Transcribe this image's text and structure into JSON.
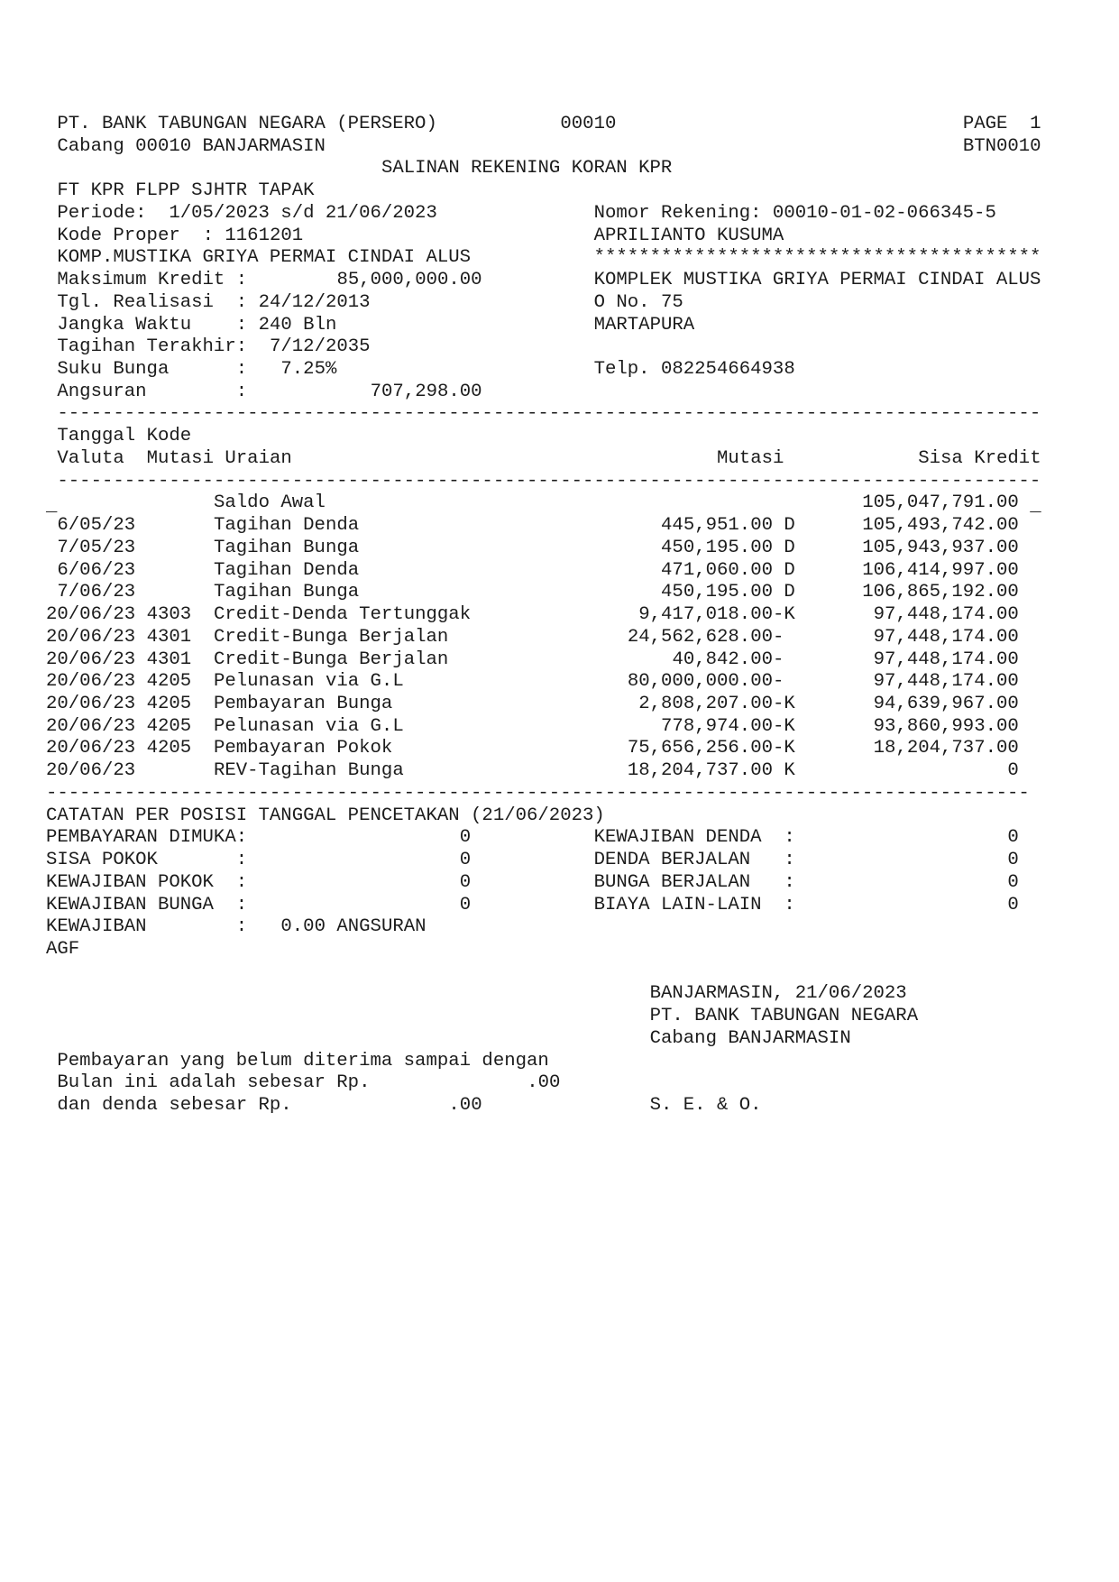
{
  "header": {
    "bank_name": "PT. BANK TABUNGAN NEGARA (PERSERO)",
    "branch_code": "00010",
    "page": "PAGE  1",
    "branch": "Cabang 00010 BANJARMASIN",
    "report_id": "BTN0010",
    "title": "SALINAN REKENING KORAN KPR",
    "product": "FT KPR FLPP SJHTR TAPAK"
  },
  "loan": {
    "periode": "Periode:  1/05/2023 s/d 21/06/2023",
    "kode_proper_label": "Kode Proper",
    "kode_proper": "1161201",
    "project": "KOMP.MUSTIKA GRIYA PERMAI CINDAI ALUS",
    "maks_kredit_label": "Maksimum Kredit",
    "maks_kredit": "85,000,000.00",
    "tgl_realisasi_label": "Tgl. Realisasi",
    "tgl_realisasi": "24/12/2013",
    "jangka_label": "Jangka Waktu",
    "jangka": "240 Bln",
    "tagihan_terakhir_label": "Tagihan Terakhir",
    "tagihan_terakhir": "7/12/2035",
    "suku_bunga_label": "Suku Bunga",
    "suku_bunga": "7.25%",
    "angsuran_label": "Angsuran",
    "angsuran": "707,298.00",
    "colon": ":"
  },
  "customer": {
    "nomor_rekening": "Nomor Rekening: 00010-01-02-066345-5",
    "name": "APRILIANTO KUSUMA",
    "stars": "****************************************",
    "address1": "KOMPLEK MUSTIKA GRIYA PERMAI CINDAI ALUS",
    "address2": "O No. 75",
    "city": "MARTAPURA",
    "phone": "Telp. 082254664938"
  },
  "separators": {
    "wide": "----------------------------------------------------------------------------------------",
    "bottom": "----------------------------------------------------------------------------------------",
    "cursor": "_"
  },
  "table": {
    "headers": {
      "tanggal": "Tanggal",
      "kode": "Kode",
      "valuta": "Valuta",
      "mutasi_kode": "Mutasi",
      "uraian": "Uraian",
      "mutasi": "Mutasi",
      "sisa_kredit": "Sisa Kredit"
    },
    "opening": {
      "uraian": "Saldo Awal",
      "sisa": "105,047,791.00"
    },
    "rows": [
      {
        "tanggal": " 6/05/23",
        "kode": "",
        "uraian": "Tagihan Denda",
        "mutasi": "445,951.00",
        "flag": " D",
        "sisa": "105,493,742.00"
      },
      {
        "tanggal": " 7/05/23",
        "kode": "",
        "uraian": "Tagihan Bunga",
        "mutasi": "450,195.00",
        "flag": " D",
        "sisa": "105,943,937.00"
      },
      {
        "tanggal": " 6/06/23",
        "kode": "",
        "uraian": "Tagihan Denda",
        "mutasi": "471,060.00",
        "flag": " D",
        "sisa": "106,414,997.00"
      },
      {
        "tanggal": " 7/06/23",
        "kode": "",
        "uraian": "Tagihan Bunga",
        "mutasi": "450,195.00",
        "flag": " D",
        "sisa": "106,865,192.00"
      },
      {
        "tanggal": "20/06/23",
        "kode": "4303",
        "uraian": "Credit-Denda Tertunggak",
        "mutasi": "9,417,018.00",
        "flag": "-K",
        "sisa": "97,448,174.00"
      },
      {
        "tanggal": "20/06/23",
        "kode": "4301",
        "uraian": "Credit-Bunga Berjalan",
        "mutasi": "24,562,628.00",
        "flag": "-",
        "sisa": "97,448,174.00"
      },
      {
        "tanggal": "20/06/23",
        "kode": "4301",
        "uraian": "Credit-Bunga Berjalan",
        "mutasi": "40,842.00",
        "flag": "-",
        "sisa": "97,448,174.00"
      },
      {
        "tanggal": "20/06/23",
        "kode": "4205",
        "uraian": "Pelunasan via G.L",
        "mutasi": "80,000,000.00",
        "flag": "-",
        "sisa": "97,448,174.00"
      },
      {
        "tanggal": "20/06/23",
        "kode": "4205",
        "uraian": "Pembayaran Bunga",
        "mutasi": "2,808,207.00",
        "flag": "-K",
        "sisa": "94,639,967.00"
      },
      {
        "tanggal": "20/06/23",
        "kode": "4205",
        "uraian": "Pelunasan via G.L",
        "mutasi": "778,974.00",
        "flag": "-K",
        "sisa": "93,860,993.00"
      },
      {
        "tanggal": "20/06/23",
        "kode": "4205",
        "uraian": "Pembayaran Pokok",
        "mutasi": "75,656,256.00",
        "flag": "-K",
        "sisa": "18,204,737.00"
      },
      {
        "tanggal": "20/06/23",
        "kode": "",
        "uraian": "REV-Tagihan Bunga",
        "mutasi": "18,204,737.00",
        "flag": " K",
        "sisa": "0"
      }
    ]
  },
  "notes": {
    "title": "CATATAN PER POSISI TANGGAL PENCETAKAN (21/06/2023)",
    "left": [
      {
        "label": "PEMBAYARAN DIMUKA:",
        "colon": "",
        "value": "0"
      },
      {
        "label": "SISA POKOK",
        "colon": ":",
        "value": "0"
      },
      {
        "label": "KEWAJIBAN POKOK",
        "colon": ":",
        "value": "0"
      },
      {
        "label": "KEWAJIBAN BUNGA",
        "colon": ":",
        "value": "0"
      }
    ],
    "right": [
      {
        "label": "KEWAJIBAN DENDA",
        "colon": ":",
        "value": "0"
      },
      {
        "label": "DENDA BERJALAN",
        "colon": ":",
        "value": "0"
      },
      {
        "label": "BUNGA BERJALAN",
        "colon": ":",
        "value": "0"
      },
      {
        "label": "BIAYA LAIN-LAIN",
        "colon": ":",
        "value": "0"
      }
    ],
    "kewajiban_label": "KEWAJIBAN",
    "kewajiban_colon": ":",
    "kewajiban_value": "0.00 ANGSURAN",
    "operator": "AGF"
  },
  "signature": {
    "place_date": "BANJARMASIN, 21/06/2023",
    "bank": "PT. BANK TABUNGAN NEGARA",
    "branch": "Cabang BANJARMASIN",
    "seo": "S. E. & O."
  },
  "footer": {
    "line1": "Pembayaran yang belum diterima sampai dengan",
    "line2": "Bulan ini adalah sebesar Rp.",
    "line2_value": ".00",
    "line3": "dan denda sebesar Rp.",
    "line3_value": ".00"
  }
}
